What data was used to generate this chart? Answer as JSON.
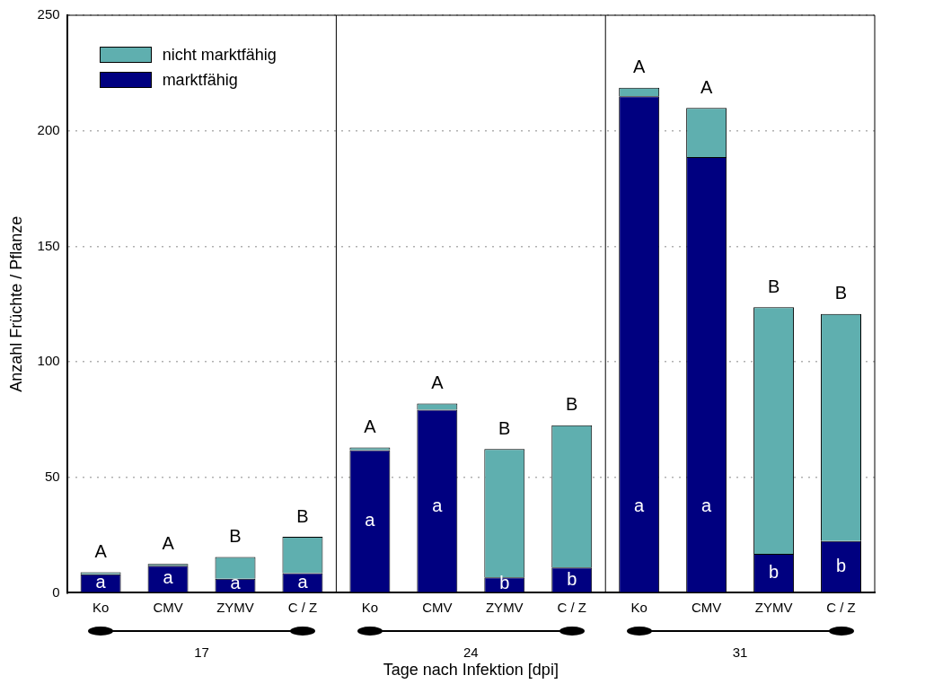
{
  "chart_data": {
    "type": "bar",
    "stacked": true,
    "xlabel": "Tage nach Infektion [dpi]",
    "ylabel": "Anzahl Früchte / Pflanze",
    "categories": [
      "Ko",
      "CMV",
      "ZYMV",
      "C / Z",
      "Ko",
      "CMV",
      "ZYMV",
      "C / Z",
      "Ko",
      "CMV",
      "ZYMV",
      "C / Z"
    ],
    "series": [
      {
        "name": "marktfähig",
        "color": "#000080",
        "values": [
          8,
          11.7,
          6.1,
          8.5,
          61.7,
          79.2,
          6.7,
          10.9,
          214.9,
          188.6,
          16.9,
          22.4
        ],
        "value_labels": [
          "a",
          "a",
          "a",
          "a",
          "a",
          "a",
          "b",
          "b",
          "a",
          "a",
          "b",
          "b"
        ]
      },
      {
        "name": "nicht marktfähig",
        "color": "#5fafaf",
        "values": [
          0.9,
          0.8,
          9.4,
          15.7,
          1.2,
          2.7,
          55.5,
          61.6,
          3.7,
          21.3,
          106.7,
          98.3
        ],
        "value_labels": [
          "A",
          "A",
          "B",
          "B",
          "A",
          "A",
          "B",
          "B",
          "A",
          "A",
          "B",
          "B"
        ]
      }
    ],
    "annotations": [
      "17",
      "24",
      "31"
    ],
    "ylim": [
      0,
      250
    ],
    "yticks": [
      0,
      50,
      100,
      150,
      200,
      250
    ],
    "grid": "y",
    "legend": "top left"
  }
}
